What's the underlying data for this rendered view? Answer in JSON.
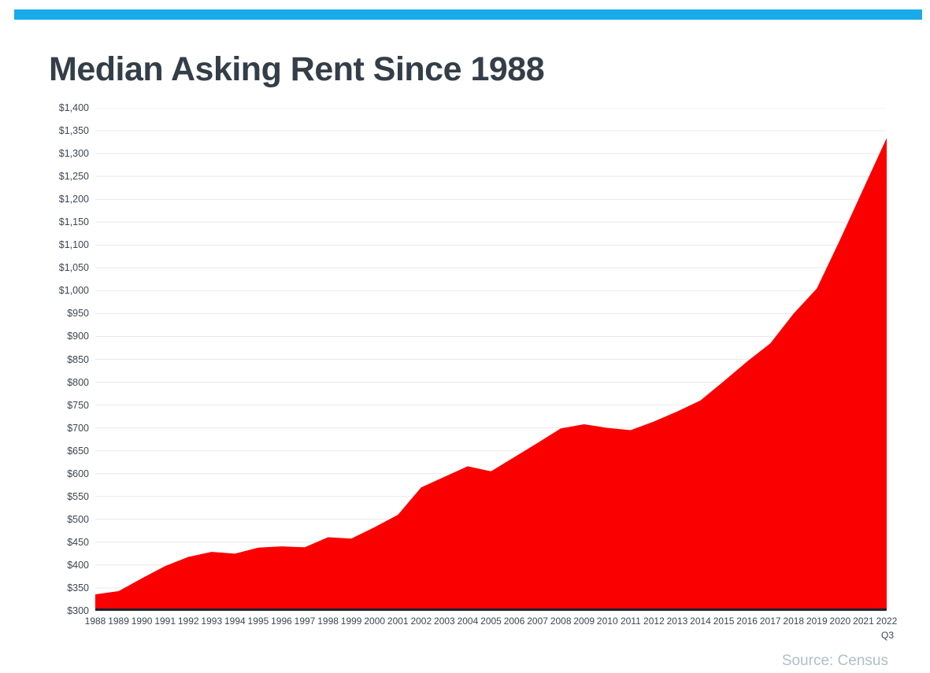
{
  "page": {
    "background_color": "#FFFFFF",
    "top_bar_color": "#18ABEA"
  },
  "header": {
    "title": "Median Asking Rent Since 1988"
  },
  "source": {
    "label": "Source: Census"
  },
  "chart_data": {
    "type": "area",
    "title": "Median Asking Rent Since 1988",
    "x": [
      "1988",
      "1989",
      "1990",
      "1991",
      "1992",
      "1993",
      "1994",
      "1995",
      "1996",
      "1997",
      "1998",
      "1999",
      "2000",
      "2001",
      "2002",
      "2003",
      "2004",
      "2005",
      "2006",
      "2007",
      "2008",
      "2009",
      "2010",
      "2011",
      "2012",
      "2013",
      "2014",
      "2015",
      "2016",
      "2017",
      "2018",
      "2019",
      "2020",
      "2021",
      "2022"
    ],
    "x_last_sub_label": "Q3",
    "values": [
      336,
      343,
      371,
      398,
      418,
      429,
      425,
      438,
      441,
      439,
      461,
      458,
      483,
      510,
      570,
      593,
      616,
      605,
      636,
      667,
      699,
      708,
      700,
      695,
      714,
      736,
      760,
      802,
      845,
      885,
      950,
      1005,
      1112,
      1223,
      1334
    ],
    "xlabel": "",
    "ylabel": "",
    "ylim": [
      300,
      1400
    ],
    "ytick_step": 50,
    "ytick_prefix": "$",
    "grid": true,
    "legend": "none",
    "area_color": "#FA0000",
    "baseline_color": "#1D222C",
    "gridline_color": "#E8E8E8",
    "tick_label_color": "#3D4752"
  }
}
